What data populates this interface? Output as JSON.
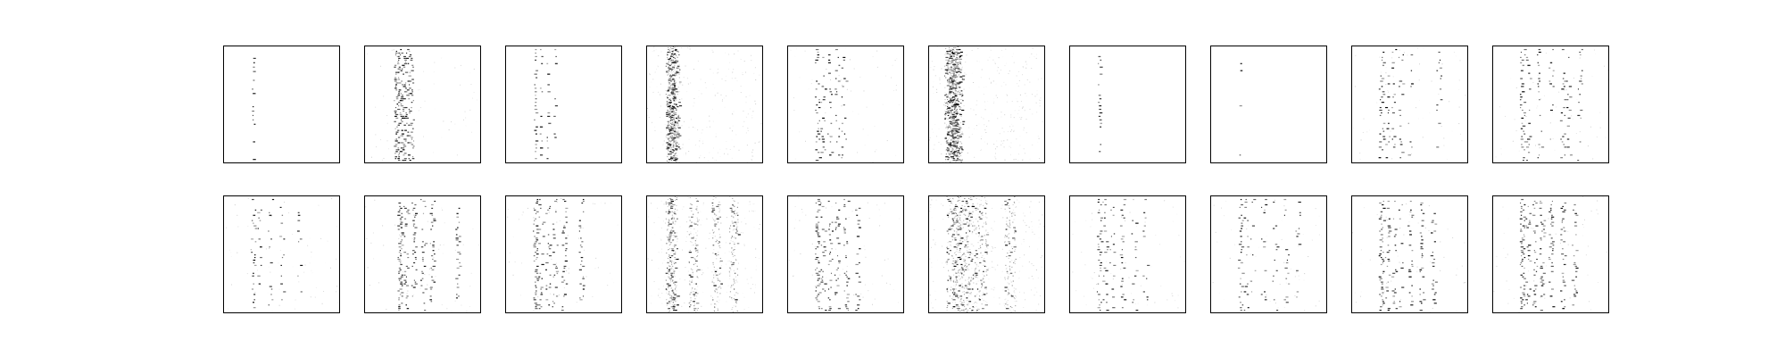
{
  "chart_data": {
    "type": "heatmap",
    "title": "",
    "xlabel": "",
    "ylabel": "",
    "axes_ticks": "none",
    "colormap": "Greys",
    "grid": false,
    "layout": {
      "rows": 2,
      "cols": 10
    },
    "panels": [
      {
        "row": 1,
        "col": 1,
        "active_columns": [
          0.25
        ],
        "row_stride": 5,
        "density": 0.18,
        "spread": 0.01,
        "noise": 0.0
      },
      {
        "row": 1,
        "col": 2,
        "active_columns": [
          0.27,
          0.3,
          0.33,
          0.36,
          0.4
        ],
        "row_stride": 2,
        "density": 0.55,
        "spread": 0.02,
        "noise": 0.01
      },
      {
        "row": 1,
        "col": 3,
        "active_columns": [
          0.25,
          0.3,
          0.36,
          0.42
        ],
        "row_stride": 4,
        "density": 0.35,
        "spread": 0.01,
        "noise": 0.0
      },
      {
        "row": 1,
        "col": 4,
        "active_columns": [
          0.2,
          0.22,
          0.24
        ],
        "row_stride": 1,
        "density": 0.55,
        "spread": 0.04,
        "noise": 0.04
      },
      {
        "row": 1,
        "col": 5,
        "active_columns": [
          0.25,
          0.3,
          0.36,
          0.42,
          0.48
        ],
        "row_stride": 3,
        "density": 0.4,
        "spread": 0.02,
        "noise": 0.01
      },
      {
        "row": 1,
        "col": 6,
        "active_columns": [
          0.18,
          0.2,
          0.22,
          0.24
        ],
        "row_stride": 1,
        "density": 0.6,
        "spread": 0.05,
        "noise": 0.05
      },
      {
        "row": 1,
        "col": 7,
        "active_columns": [
          0.25
        ],
        "row_stride": 4,
        "density": 0.25,
        "spread": 0.01,
        "noise": 0.0
      },
      {
        "row": 1,
        "col": 8,
        "active_columns": [
          0.25
        ],
        "row_stride": 8,
        "density": 0.14,
        "spread": 0.005,
        "noise": 0.0
      },
      {
        "row": 1,
        "col": 9,
        "active_columns": [
          0.25,
          0.3,
          0.36,
          0.42,
          0.5,
          0.75
        ],
        "row_stride": 3,
        "density": 0.3,
        "spread": 0.02,
        "noise": 0.01
      },
      {
        "row": 1,
        "col": 10,
        "active_columns": [
          0.25,
          0.3,
          0.4,
          0.5,
          0.6,
          0.65,
          0.75
        ],
        "row_stride": 3,
        "density": 0.35,
        "spread": 0.02,
        "noise": 0.01
      },
      {
        "row": 2,
        "col": 1,
        "active_columns": [
          0.25,
          0.3,
          0.4,
          0.5,
          0.65
        ],
        "row_stride": 3,
        "density": 0.3,
        "spread": 0.02,
        "noise": 0.01
      },
      {
        "row": 2,
        "col": 2,
        "active_columns": [
          0.3,
          0.35,
          0.42,
          0.5,
          0.58,
          0.8
        ],
        "row_stride": 2,
        "density": 0.4,
        "spread": 0.02,
        "noise": 0.01
      },
      {
        "row": 2,
        "col": 3,
        "active_columns": [
          0.25,
          0.3,
          0.36,
          0.42,
          0.5,
          0.65
        ],
        "row_stride": 2,
        "density": 0.4,
        "spread": 0.02,
        "noise": 0.01
      },
      {
        "row": 2,
        "col": 4,
        "active_columns": [
          0.2,
          0.22,
          0.4,
          0.6,
          0.75
        ],
        "row_stride": 2,
        "density": 0.35,
        "spread": 0.04,
        "noise": 0.03
      },
      {
        "row": 2,
        "col": 5,
        "active_columns": [
          0.25,
          0.3,
          0.36,
          0.42,
          0.5,
          0.6
        ],
        "row_stride": 2,
        "density": 0.3,
        "spread": 0.02,
        "noise": 0.01
      },
      {
        "row": 2,
        "col": 6,
        "active_columns": [
          0.2,
          0.25,
          0.3,
          0.35,
          0.45,
          0.7
        ],
        "row_stride": 2,
        "density": 0.35,
        "spread": 0.05,
        "noise": 0.04
      },
      {
        "row": 2,
        "col": 7,
        "active_columns": [
          0.25,
          0.3,
          0.36,
          0.45,
          0.55,
          0.65
        ],
        "row_stride": 3,
        "density": 0.3,
        "spread": 0.02,
        "noise": 0.01
      },
      {
        "row": 2,
        "col": 8,
        "active_columns": [
          0.25,
          0.3,
          0.36,
          0.45,
          0.55,
          0.65,
          0.75
        ],
        "row_stride": 3,
        "density": 0.3,
        "spread": 0.02,
        "noise": 0.01
      },
      {
        "row": 2,
        "col": 9,
        "active_columns": [
          0.25,
          0.3,
          0.36,
          0.42,
          0.5,
          0.6,
          0.7
        ],
        "row_stride": 2,
        "density": 0.35,
        "spread": 0.02,
        "noise": 0.01
      },
      {
        "row": 2,
        "col": 10,
        "active_columns": [
          0.25,
          0.3,
          0.36,
          0.42,
          0.5,
          0.6,
          0.7
        ],
        "row_stride": 2,
        "density": 0.4,
        "spread": 0.02,
        "noise": 0.01
      }
    ]
  }
}
